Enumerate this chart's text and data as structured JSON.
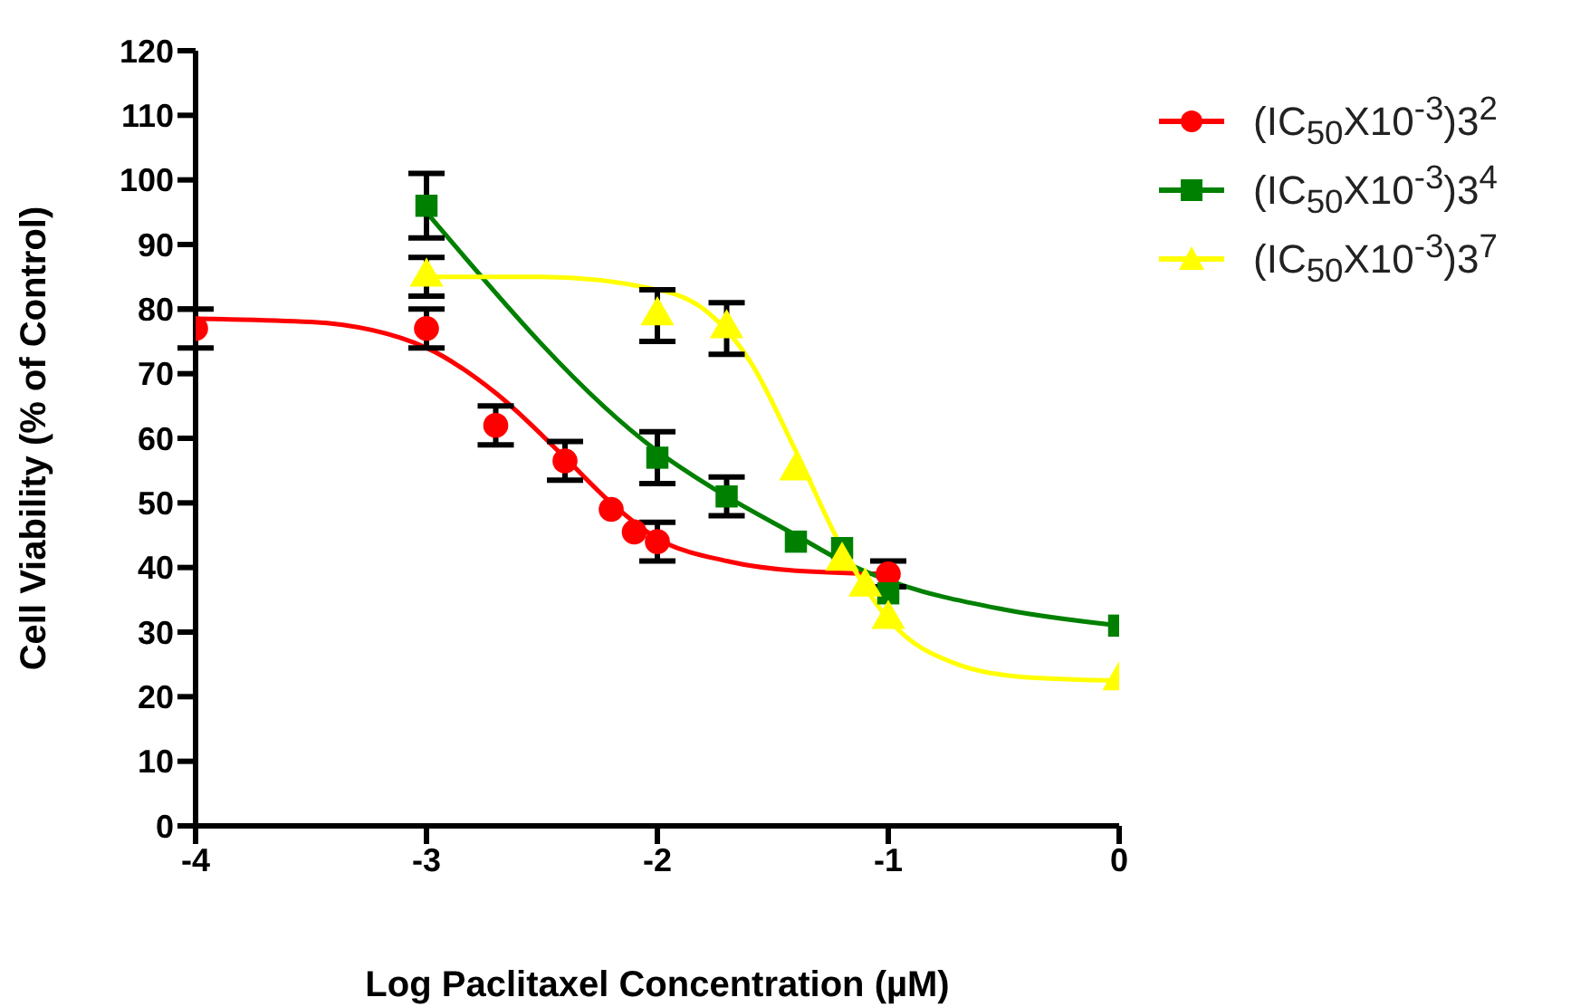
{
  "chart_data": {
    "type": "scatter",
    "xlabel": "Log Paclitaxel Concentration (µM)",
    "ylabel": "Cell Viability (% of Control)",
    "xlim": [
      -4,
      0
    ],
    "xticks": [
      -4,
      -3,
      -2,
      -1,
      0
    ],
    "ylim": [
      0,
      120
    ],
    "yticks": [
      0,
      10,
      20,
      30,
      40,
      50,
      60,
      70,
      80,
      90,
      100,
      110,
      120
    ],
    "grid": false,
    "legend": "right",
    "series": [
      {
        "name": "(IC$_{50}$X10$^{-3}$)3$^{2}$",
        "color": "#ff0000",
        "marker": "circle",
        "x": [
          -4,
          -3,
          -2.7,
          -2.4,
          -2.2,
          -2.1,
          -2,
          -1
        ],
        "values": [
          77,
          77,
          62,
          56.5,
          49,
          45.5,
          44,
          39
        ],
        "errors": [
          3,
          3,
          3,
          3,
          null,
          null,
          3,
          2
        ]
      },
      {
        "name": "(IC$_{50}$X10$^{-3}$)3$^{4}$",
        "color": "#008000",
        "marker": "square",
        "x": [
          -3,
          -2,
          -1.7,
          -1.4,
          -1.2,
          -1,
          0
        ],
        "values": [
          96,
          57,
          51,
          44,
          43,
          36,
          31
        ],
        "errors": [
          5,
          4,
          3,
          null,
          null,
          null,
          null
        ]
      },
      {
        "name": "(IC$_{50}$X10$^{-3}$)3$^{7}$",
        "color": "#ffff00",
        "marker": "triangle",
        "x": [
          -3,
          -2,
          -1.7,
          -1.4,
          -1.2,
          -1.1,
          -1,
          0
        ],
        "values": [
          85,
          79,
          77,
          55,
          41,
          37,
          32,
          22.5
        ],
        "errors": [
          3,
          4,
          4,
          null,
          null,
          null,
          null,
          null
        ]
      },
      {
        "type": "line",
        "color": "#ff0000",
        "marker": "none",
        "x": [
          -4,
          -3.5,
          -3,
          -2.7,
          -2.4,
          -2.2,
          -2,
          -1.7,
          -1.4,
          -1
        ],
        "values": [
          78.5,
          78,
          74,
          67,
          57,
          50,
          44.5,
          41,
          39.5,
          39
        ]
      },
      {
        "type": "line",
        "color": "#008000",
        "marker": "none",
        "x": [
          -3,
          -2,
          -1.7,
          -1.4,
          -1.2,
          -1,
          -0.5,
          0
        ],
        "values": [
          95,
          58,
          51,
          45,
          41,
          38,
          33.5,
          31
        ]
      },
      {
        "type": "line",
        "color": "#ffff00",
        "marker": "none",
        "x": [
          -3,
          -2.5,
          -2,
          -1.8,
          -1.6,
          -1.4,
          -1.2,
          -1,
          -0.7,
          -0.4,
          0
        ],
        "values": [
          85,
          85,
          83,
          80,
          72,
          58,
          43,
          32,
          25,
          23,
          22.5
        ]
      }
    ]
  }
}
